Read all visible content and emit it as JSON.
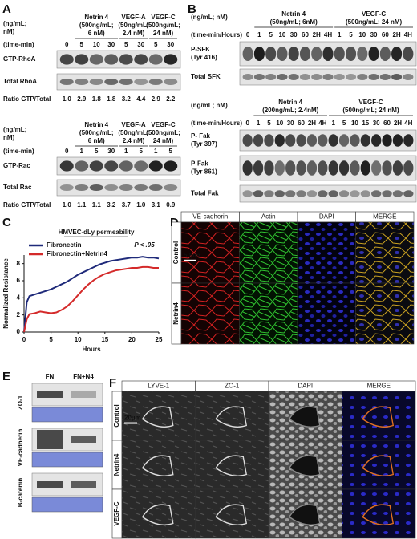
{
  "panel_a": {
    "label": "A",
    "top": {
      "units": [
        "(ng/mL;",
        "nM)"
      ],
      "time_label": "(time-min)",
      "groups": [
        {
          "lines": [
            "Netrin 4",
            "(500ng/mL;",
            "6 nM)"
          ]
        },
        {
          "lines": [
            "VEGF-A",
            "(50ng/mL;",
            "2.4 nM)"
          ]
        },
        {
          "lines": [
            "VEGF-C",
            "(500ng/mL;",
            "24 nM)"
          ]
        }
      ],
      "times": [
        "0",
        "5",
        "10",
        "30",
        "5",
        "30",
        "5",
        "30"
      ],
      "rows": [
        [
          "GTP-RhoA"
        ],
        [
          "Total RhoA"
        ]
      ],
      "ratio_label": "Ratio GTP/Total",
      "ratios": [
        "1.0",
        "2.9",
        "1.8",
        "1.8",
        "3.2",
        "4.4",
        "2.9",
        "2.2"
      ]
    },
    "bottom": {
      "units": [
        "(ng/mL;",
        "nM)"
      ],
      "time_label": "(time-min)",
      "groups": [
        {
          "lines": [
            "Netrin 4",
            "(500ng/mL;",
            "6 nM)"
          ]
        },
        {
          "lines": [
            "VEGF-A",
            "(50ng/mL;",
            "2.4 nM)"
          ]
        },
        {
          "lines": [
            "VEGF-C",
            "(500ng/mL;",
            "24 nM)"
          ]
        }
      ],
      "times": [
        "0",
        "1",
        "5",
        "30",
        "1",
        "5",
        "1",
        "5"
      ],
      "rows": [
        [
          "GTP-Rac"
        ],
        [
          "Total Rac"
        ]
      ],
      "ratio_label": "Ratio GTP/Total",
      "ratios": [
        "1.0",
        "1.1",
        "1.1",
        "3.2",
        "3.7",
        "1.0",
        "3.1",
        "0.9"
      ]
    }
  },
  "panel_b": {
    "label": "B",
    "top": {
      "units": [
        "(ng/mL; nM)"
      ],
      "time_label": "(time-min/Hours)",
      "groups": [
        {
          "lines": [
            "Netrin 4",
            "(50ng/mL; 6nM)"
          ]
        },
        {
          "lines": [
            "VEGF-C",
            "(500ng/mL; 24 nM)"
          ]
        }
      ],
      "times": [
        "0",
        "1",
        "5",
        "10",
        "30",
        "60",
        "2H",
        "4H",
        "1",
        "5",
        "10",
        "30",
        "60",
        "2H",
        "4H"
      ],
      "rows": [
        [
          "P-SFK",
          "(Tyr 416)"
        ],
        [
          "Total SFK"
        ]
      ]
    },
    "bottom": {
      "units": [
        "(ng/mL; nM)"
      ],
      "time_label": "(time-min/Hours)",
      "groups": [
        {
          "lines": [
            "Netrin 4",
            "(200ng/mL; 2.4nM)"
          ]
        },
        {
          "lines": [
            "VEGF-C",
            "(500ng/mL; 24 nM)"
          ]
        }
      ],
      "times": [
        "0",
        "1",
        "5",
        "10",
        "30",
        "60",
        "2H",
        "4H",
        "1",
        "5",
        "10",
        "15",
        "30",
        "60",
        "2H",
        "4H"
      ],
      "rows": [
        [
          "P- Fak",
          "(Tyr 397)"
        ],
        [
          "P-Fak",
          "(Tyr 861)"
        ],
        [
          "Total Fak"
        ]
      ]
    }
  },
  "panel_c": {
    "label": "C"
  },
  "chart_data": {
    "type": "line",
    "title": "HMVEC-dLy permeability",
    "annotation": "P < .05",
    "x_label": "Hours",
    "y_label": "Normalized Resistance",
    "x": [
      0,
      0.5,
      1,
      2,
      3,
      4,
      5,
      6,
      7,
      8,
      9,
      10,
      11,
      12,
      13,
      14,
      15,
      16,
      17,
      18,
      19,
      20,
      21,
      22,
      23,
      24,
      25
    ],
    "series": [
      {
        "name": "Fibronectin",
        "color": "#1f2a7a",
        "values": [
          0,
          3.5,
          4.2,
          4.4,
          4.6,
          4.8,
          5.0,
          5.3,
          5.6,
          5.9,
          6.3,
          6.7,
          7.0,
          7.3,
          7.6,
          7.9,
          8.1,
          8.3,
          8.4,
          8.5,
          8.6,
          8.7,
          8.7,
          8.8,
          8.7,
          8.7,
          8.6
        ]
      },
      {
        "name": "Fibronectin+Netrin4",
        "color": "#d42a2a",
        "values": [
          0,
          1.5,
          2.1,
          2.2,
          2.4,
          2.3,
          2.2,
          2.3,
          2.6,
          3.0,
          3.6,
          4.3,
          5.0,
          5.6,
          6.1,
          6.5,
          6.8,
          7.0,
          7.2,
          7.3,
          7.4,
          7.5,
          7.5,
          7.6,
          7.6,
          7.5,
          7.5
        ]
      }
    ],
    "xlim": [
      0,
      25
    ],
    "ylim": [
      0,
      9
    ],
    "xticks": [
      0,
      5,
      10,
      15,
      20,
      25
    ],
    "yticks": [
      0,
      2,
      4,
      6,
      8
    ]
  },
  "panel_d": {
    "label": "D",
    "columns": [
      "VE-cadherin",
      "Actin",
      "DAPI",
      "MERGE"
    ],
    "rows": [
      "Control",
      "Netrin4"
    ],
    "scale_bar": "50µm"
  },
  "panel_e": {
    "label": "E",
    "columns": [
      "FN",
      "FN+N4"
    ],
    "rows": [
      "ZO-1",
      "VE-cadherin",
      "B-catenin"
    ]
  },
  "panel_f": {
    "label": "F",
    "columns": [
      "LYVE-1",
      "ZO-1",
      "DAPI",
      "MERGE"
    ],
    "rows": [
      "Control",
      "Netrin4",
      "VEGF-C"
    ],
    "scale_bar": "20µm"
  }
}
